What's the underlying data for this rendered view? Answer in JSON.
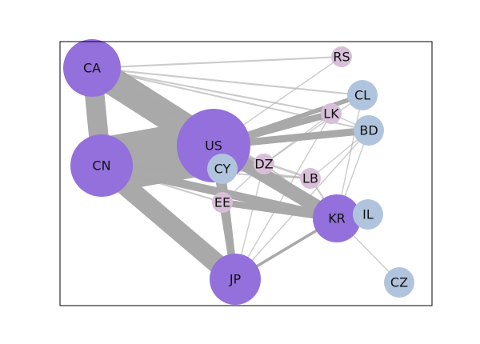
{
  "colors": {
    "large_node": "#9370DB",
    "small_blue_node": "#B0C4DE",
    "small_pink_node": "#D8BFD8",
    "edge": "#A9A9A9",
    "frame": "#000000"
  },
  "nodes": [
    {
      "id": "CA",
      "label": "CA",
      "group": "large"
    },
    {
      "id": "CN",
      "label": "CN",
      "group": "large"
    },
    {
      "id": "US",
      "label": "US",
      "group": "large"
    },
    {
      "id": "JP",
      "label": "JP",
      "group": "large"
    },
    {
      "id": "KR",
      "label": "KR",
      "group": "large"
    },
    {
      "id": "CY",
      "label": "CY",
      "group": "blue"
    },
    {
      "id": "CL",
      "label": "CL",
      "group": "blue"
    },
    {
      "id": "BD",
      "label": "BD",
      "group": "blue"
    },
    {
      "id": "IL",
      "label": "IL",
      "group": "blue"
    },
    {
      "id": "CZ",
      "label": "CZ",
      "group": "blue"
    },
    {
      "id": "RS",
      "label": "RS",
      "group": "pink"
    },
    {
      "id": "LK",
      "label": "LK",
      "group": "pink"
    },
    {
      "id": "DZ",
      "label": "DZ",
      "group": "pink"
    },
    {
      "id": "LB",
      "label": "LB",
      "group": "pink"
    },
    {
      "id": "EE",
      "label": "EE",
      "group": "pink"
    }
  ],
  "edges": [
    {
      "source": "US",
      "target": "CN",
      "weight": 10
    },
    {
      "source": "CA",
      "target": "US",
      "weight": 5
    },
    {
      "source": "CA",
      "target": "CN",
      "weight": 3.5
    },
    {
      "source": "CN",
      "target": "JP",
      "weight": 3.5
    },
    {
      "source": "US",
      "target": "KR",
      "weight": 2.5
    },
    {
      "source": "CN",
      "target": "KR",
      "weight": 1.5
    },
    {
      "source": "US",
      "target": "BD",
      "weight": 1.3
    },
    {
      "source": "US",
      "target": "LK",
      "weight": 1.2
    },
    {
      "source": "US",
      "target": "CL",
      "weight": 0.8
    },
    {
      "source": "US",
      "target": "JP",
      "weight": 1.3
    },
    {
      "source": "EE",
      "target": "KR",
      "weight": 1.2
    },
    {
      "source": "CY",
      "target": "JP",
      "weight": 1
    },
    {
      "source": "JP",
      "target": "KR",
      "weight": 0.5
    },
    {
      "source": "KR",
      "target": "IL",
      "weight": 0.5
    },
    {
      "source": "CA",
      "target": "RS",
      "weight": 0.3
    },
    {
      "source": "CA",
      "target": "CL",
      "weight": 0.3
    },
    {
      "source": "CA",
      "target": "LK",
      "weight": 0.3
    },
    {
      "source": "CA",
      "target": "BD",
      "weight": 0.3
    },
    {
      "source": "CA",
      "target": "DZ",
      "weight": 0.3
    },
    {
      "source": "US",
      "target": "RS",
      "weight": 0.2
    },
    {
      "source": "CN",
      "target": "LB",
      "weight": 0.3
    },
    {
      "source": "CN",
      "target": "EE",
      "weight": 0.3
    },
    {
      "source": "US",
      "target": "DZ",
      "weight": 0.4
    },
    {
      "source": "US",
      "target": "LB",
      "weight": 0.4
    },
    {
      "source": "JP",
      "target": "LK",
      "weight": 0.2
    },
    {
      "source": "JP",
      "target": "BD",
      "weight": 0.2
    },
    {
      "source": "JP",
      "target": "DZ",
      "weight": 0.2
    },
    {
      "source": "JP",
      "target": "EE",
      "weight": 0.2
    },
    {
      "source": "KR",
      "target": "CZ",
      "weight": 0.2
    },
    {
      "source": "KR",
      "target": "BD",
      "weight": 0.2
    },
    {
      "source": "KR",
      "target": "CL",
      "weight": 0.2
    },
    {
      "source": "KR",
      "target": "DZ",
      "weight": 0.3
    },
    {
      "source": "KR",
      "target": "LB",
      "weight": 0.3
    },
    {
      "source": "CY",
      "target": "LB",
      "weight": 0.3
    },
    {
      "source": "EE",
      "target": "DZ",
      "weight": 0.2
    },
    {
      "source": "DZ",
      "target": "LK",
      "weight": 0.2
    },
    {
      "source": "LK",
      "target": "BD",
      "weight": 0.2
    },
    {
      "source": "LB",
      "target": "BD",
      "weight": 0.2
    },
    {
      "source": "DZ",
      "target": "CL",
      "weight": 0.2
    }
  ]
}
